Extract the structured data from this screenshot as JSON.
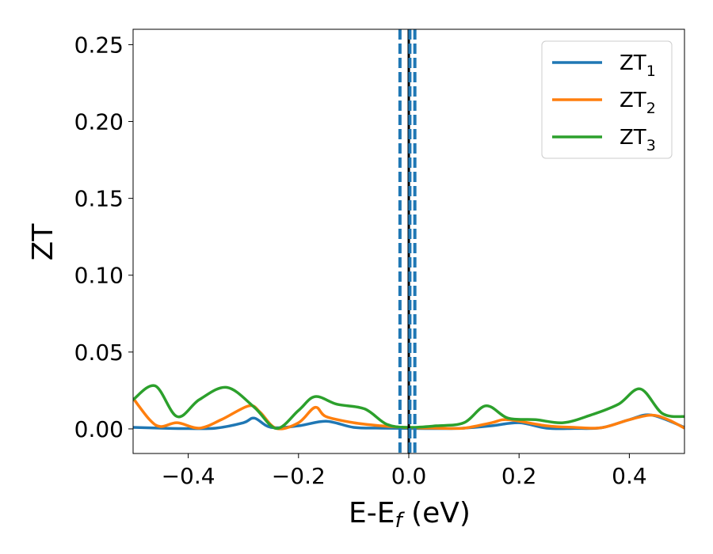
{
  "chart_data": {
    "type": "line",
    "xlabel": "E-E",
    "xlabel_sub": "f",
    "xlabel_unit": " (eV)",
    "ylabel": "ZT",
    "xlim": [
      -0.5,
      0.5
    ],
    "ylim": [
      -0.016,
      0.26
    ],
    "xticks": [
      -0.4,
      -0.2,
      0.0,
      0.2,
      0.4
    ],
    "xtick_labels": [
      "−0.4",
      "−0.2",
      "0.0",
      "0.2",
      "0.4"
    ],
    "yticks": [
      0.0,
      0.05,
      0.1,
      0.15,
      0.2,
      0.25
    ],
    "ytick_labels": [
      "0.00",
      "0.05",
      "0.10",
      "0.15",
      "0.20",
      "0.25"
    ],
    "grid": false,
    "legend_position": "top-right",
    "series": [
      {
        "name": "ZT",
        "name_sub": "1",
        "color": "#1f77b4",
        "x": [
          -0.5,
          -0.45,
          -0.4,
          -0.35,
          -0.3,
          -0.28,
          -0.25,
          -0.2,
          -0.15,
          -0.1,
          -0.05,
          0.0,
          0.05,
          0.1,
          0.15,
          0.2,
          0.25,
          0.3,
          0.35,
          0.4,
          0.44,
          0.5
        ],
        "y": [
          0.001,
          0.0005,
          0.0002,
          0.0005,
          0.004,
          0.007,
          0.001,
          0.002,
          0.005,
          0.001,
          0.0005,
          0.0003,
          0.0002,
          0.0005,
          0.002,
          0.004,
          0.0005,
          0.0003,
          0.0008,
          0.006,
          0.009,
          0.001
        ]
      },
      {
        "name": "ZT",
        "name_sub": "2",
        "color": "#ff7f0e",
        "x": [
          -0.5,
          -0.47,
          -0.45,
          -0.42,
          -0.38,
          -0.34,
          -0.29,
          -0.27,
          -0.24,
          -0.2,
          -0.17,
          -0.15,
          -0.1,
          -0.05,
          0.0,
          0.05,
          0.1,
          0.15,
          0.18,
          0.25,
          0.3,
          0.35,
          0.4,
          0.44,
          0.47,
          0.5
        ],
        "y": [
          0.02,
          0.006,
          0.0015,
          0.004,
          0.0005,
          0.006,
          0.015,
          0.011,
          0.0003,
          0.004,
          0.014,
          0.008,
          0.004,
          0.002,
          0.0008,
          0.0005,
          0.0005,
          0.004,
          0.006,
          0.002,
          0.001,
          0.0008,
          0.006,
          0.009,
          0.006,
          0.0005
        ]
      },
      {
        "name": "ZT",
        "name_sub": "3",
        "color": "#2ca02c",
        "x": [
          -0.5,
          -0.46,
          -0.42,
          -0.38,
          -0.33,
          -0.28,
          -0.24,
          -0.2,
          -0.17,
          -0.13,
          -0.08,
          -0.04,
          0.0,
          0.05,
          0.1,
          0.14,
          0.18,
          0.23,
          0.28,
          0.33,
          0.38,
          0.42,
          0.46,
          0.5
        ],
        "y": [
          0.019,
          0.028,
          0.008,
          0.019,
          0.027,
          0.014,
          0.0003,
          0.012,
          0.021,
          0.016,
          0.013,
          0.003,
          0.001,
          0.002,
          0.004,
          0.015,
          0.007,
          0.006,
          0.004,
          0.009,
          0.016,
          0.026,
          0.01,
          0.008
        ]
      }
    ],
    "vlines": [
      {
        "x": 0.0,
        "style": "solid",
        "color": "#000000"
      },
      {
        "x": -0.016,
        "style": "dashed",
        "color": "#1f77b4"
      },
      {
        "x": 0.002,
        "style": "dashed",
        "color": "#1f77b4"
      },
      {
        "x": 0.011,
        "style": "dashed",
        "color": "#1f77b4"
      }
    ]
  }
}
